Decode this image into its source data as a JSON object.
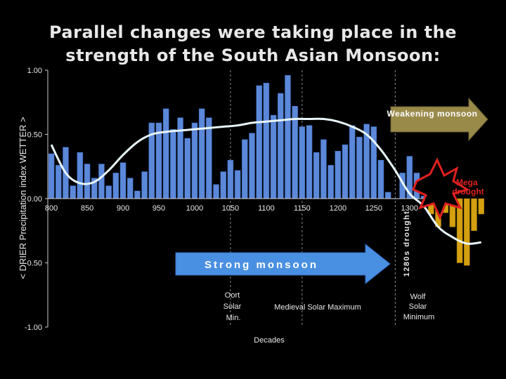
{
  "slide": {
    "title_line1": "Parallel changes were taking place in the",
    "title_line2": "strength of the South Asian Monsoon:"
  },
  "chart_data": {
    "type": "bar",
    "title": "",
    "ylabel": "< DRIER   Precipitation index   WETTER >",
    "xlabel": "Decades",
    "ylim": [
      -1.0,
      1.0
    ],
    "y_ticks": [
      {
        "value": 1.0,
        "label": "1.00"
      },
      {
        "value": 0.5,
        "label": "0.50"
      },
      {
        "value": 0.0,
        "label": "0.00"
      },
      {
        "value": -0.5,
        "label": "-0.50"
      },
      {
        "value": -1.0,
        "label": "-1.00"
      }
    ],
    "x_ticks": [
      800,
      850,
      900,
      950,
      1000,
      1050,
      1100,
      1150,
      1200,
      1250,
      1300,
      1350
    ],
    "x_tick_labels_shown": [
      "800",
      "850",
      "900",
      "950",
      "1000",
      "1050",
      "1100",
      "1150",
      "1200",
      "1250",
      "1300",
      ""
    ],
    "xlim": [
      795,
      1415
    ],
    "dashed_gridlines_x": [
      1050,
      1150,
      1280
    ],
    "series": [
      {
        "color": "#5b88d9",
        "x": [
          800,
          810,
          820,
          830,
          840,
          850,
          860,
          870,
          880,
          890,
          900,
          910,
          920,
          930,
          940,
          950,
          960,
          970,
          980,
          990,
          1000,
          1010,
          1020,
          1030,
          1040,
          1050,
          1060,
          1070,
          1080,
          1090,
          1100,
          1110,
          1120,
          1130,
          1140,
          1150,
          1160,
          1170,
          1180,
          1190,
          1200,
          1210,
          1220,
          1230,
          1240,
          1250,
          1260,
          1270,
          1280,
          1290,
          1300,
          1310,
          1320
        ],
        "values": [
          0.35,
          0.26,
          0.4,
          0.1,
          0.36,
          0.27,
          0.16,
          0.27,
          0.1,
          0.2,
          0.28,
          0.16,
          0.06,
          0.21,
          0.59,
          0.59,
          0.7,
          0.54,
          0.63,
          0.47,
          0.59,
          0.7,
          0.63,
          0.11,
          0.21,
          0.3,
          0.22,
          0.46,
          0.51,
          0.88,
          0.9,
          0.65,
          0.82,
          0.96,
          0.72,
          0.56,
          0.57,
          0.36,
          0.46,
          0.26,
          0.37,
          0.42,
          0.57,
          0.48,
          0.58,
          0.56,
          0.3,
          0.05,
          0.0,
          0.2,
          0.33,
          0.2,
          0.02
        ]
      },
      {
        "color": "#d4a010",
        "x": [
          1330,
          1340,
          1350,
          1360,
          1370,
          1380,
          1390,
          1400
        ],
        "values": [
          -0.12,
          -0.22,
          -0.11,
          -0.22,
          -0.5,
          -0.52,
          -0.25,
          -0.12
        ]
      }
    ],
    "smooth_line": {
      "color": "#e8f6fa",
      "x": [
        800,
        820,
        840,
        860,
        880,
        900,
        920,
        940,
        960,
        980,
        1000,
        1020,
        1040,
        1060,
        1080,
        1100,
        1120,
        1140,
        1160,
        1180,
        1200,
        1220,
        1240,
        1260,
        1280,
        1300,
        1320,
        1340,
        1360,
        1380,
        1400
      ],
      "values": [
        0.42,
        0.2,
        0.12,
        0.13,
        0.22,
        0.34,
        0.44,
        0.5,
        0.52,
        0.53,
        0.54,
        0.55,
        0.56,
        0.57,
        0.59,
        0.6,
        0.61,
        0.62,
        0.62,
        0.62,
        0.6,
        0.56,
        0.5,
        0.38,
        0.22,
        0.04,
        -0.06,
        -0.22,
        -0.3,
        -0.35,
        -0.34
      ]
    },
    "annotations": {
      "weakening": "Weakening monsoon",
      "mega_drought": "Mega drought",
      "strong": "Strong monsoon",
      "drought_1280": "1280s drought",
      "oort": "Oort Solar Min.",
      "medieval": "Medieval Solar Maximum",
      "wolf": "Wolf Solar Minimum"
    },
    "colors": {
      "plot_bg": "#000000",
      "axis_text": "#e8e8e8",
      "gold_arrow": "#9a8a4a",
      "blue_arrow": "#4a90e2",
      "burst_red": "#e02020"
    }
  }
}
